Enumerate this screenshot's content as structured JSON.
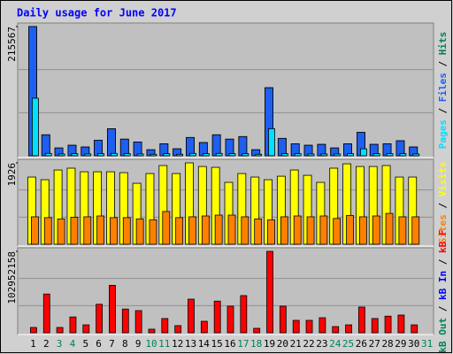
{
  "chart_data": {
    "type": "bar",
    "title": "Daily usage for June 2017",
    "legend_separator": " / ",
    "categories": [
      "1",
      "2",
      "3",
      "4",
      "5",
      "6",
      "7",
      "8",
      "9",
      "10",
      "11",
      "12",
      "13",
      "14",
      "15",
      "16",
      "17",
      "18",
      "19",
      "20",
      "21",
      "22",
      "23",
      "24",
      "25",
      "26",
      "27",
      "28",
      "29",
      "30",
      "31"
    ],
    "category_colors": [
      "#000000",
      "#000000",
      "#00805c",
      "#00805c",
      "#000000",
      "#000000",
      "#000000",
      "#000000",
      "#000000",
      "#00805c",
      "#00805c",
      "#000000",
      "#000000",
      "#000000",
      "#000000",
      "#000000",
      "#00805c",
      "#00805c",
      "#000000",
      "#000000",
      "#000000",
      "#000000",
      "#000000",
      "#00805c",
      "#00805c",
      "#000000",
      "#000000",
      "#000000",
      "#000000",
      "#000000",
      "#00805c"
    ],
    "panels": [
      {
        "ylim": [
          0,
          215567
        ],
        "yticks": [
          215567
        ],
        "series": [
          {
            "name": "Hits",
            "color": "#00805c",
            "values": [
              215567,
              35000,
              13000,
              17500,
              14600,
              26000,
              45000,
              27700,
              23000,
              10000,
              20000,
              11600,
              30500,
              22000,
              35000,
              27700,
              32000,
              10000,
              113500,
              29000,
              20000,
              17500,
              19000,
              13000,
              20000,
              39000,
              19000,
              20000,
              25000,
              14600,
              0
            ]
          },
          {
            "name": "Files",
            "color": "#1e5ff0",
            "values": [
              215567,
              35000,
              13000,
              17500,
              14600,
              26000,
              45000,
              27700,
              23000,
              10000,
              20000,
              11600,
              30500,
              22000,
              35000,
              27700,
              32000,
              10000,
              113500,
              29000,
              20000,
              17500,
              19000,
              13000,
              20000,
              39000,
              19000,
              20000,
              25000,
              14600,
              0
            ]
          },
          {
            "name": "Pages",
            "color": "#00e0ff",
            "values": [
              96000,
              4000,
              3000,
              3500,
              3000,
              3500,
              4000,
              3500,
              3000,
              2500,
              3500,
              2500,
              4000,
              3500,
              4000,
              3500,
              3500,
              2500,
              45000,
              3500,
              3500,
              3000,
              3000,
              3000,
              3500,
              11600,
              3500,
              3500,
              3500,
              3000,
              0
            ]
          }
        ]
      },
      {
        "ylim": [
          0,
          1926
        ],
        "yticks": [
          1926
        ],
        "series": [
          {
            "name": "Visits",
            "color": "#ffff00",
            "values": [
              1590,
              1527,
              1757,
              1800,
              1715,
              1715,
              1715,
              1694,
              1443,
              1673,
              1862,
              1673,
              1926,
              1840,
              1820,
              1464,
              1673,
              1590,
              1527,
              1610,
              1757,
              1631,
              1464,
              1800,
              1903,
              1840,
              1840,
              1862,
              1590,
              1590,
              0
            ]
          },
          {
            "name": "Sites",
            "color": "#ff8000",
            "values": [
              650,
              630,
              600,
              640,
              650,
              670,
              630,
              630,
              600,
              580,
              775,
              630,
              650,
              670,
              690,
              690,
              650,
              600,
              580,
              650,
              670,
              650,
              670,
              610,
              680,
              650,
              670,
              730,
              650,
              650,
              0
            ]
          }
        ]
      },
      {
        "ylim": [
          0,
          102952158
        ],
        "yticks": [
          102952158
        ],
        "series": [
          {
            "name": "kB F",
            "color": "#ff0000",
            "values": [
              6700000,
              49000000,
              6700000,
              20000000,
              10000000,
              36000000,
              60000000,
              30000000,
              28000000,
              4500000,
              18000000,
              9000000,
              42500000,
              14500000,
              40000000,
              33600000,
              47000000,
              5600000,
              102952158,
              33600000,
              15700000,
              15700000,
              19000000,
              7800000,
              10000000,
              32500000,
              18000000,
              21000000,
              22400000,
              10000000,
              0
            ]
          },
          {
            "name": "kB In",
            "color": "#0000ff",
            "values": [
              0,
              0,
              0,
              0,
              0,
              0,
              0,
              0,
              0,
              0,
              0,
              0,
              0,
              0,
              0,
              0,
              0,
              0,
              0,
              0,
              0,
              0,
              0,
              0,
              0,
              0,
              0,
              0,
              0,
              0,
              0
            ]
          },
          {
            "name": "kB Out",
            "color": "#00805c",
            "values": [
              0,
              0,
              0,
              0,
              0,
              0,
              0,
              0,
              0,
              0,
              0,
              0,
              0,
              0,
              0,
              0,
              0,
              0,
              0,
              0,
              0,
              0,
              0,
              0,
              0,
              0,
              0,
              0,
              0,
              0,
              0
            ]
          }
        ]
      }
    ]
  }
}
